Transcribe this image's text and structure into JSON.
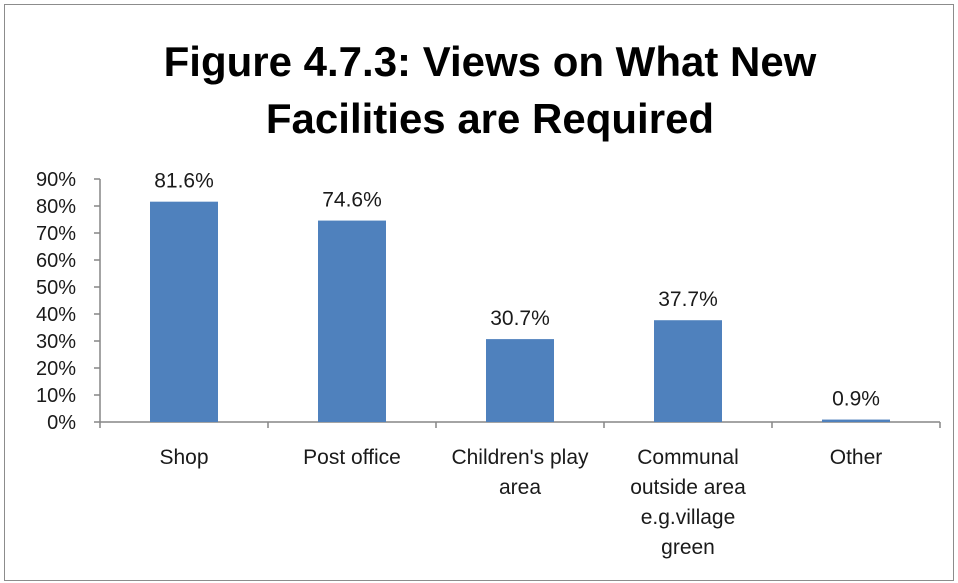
{
  "chart_data": {
    "type": "bar",
    "title_lines": [
      "Figure 4.7.3: Views on What New",
      "Facilities are Required"
    ],
    "categories": [
      [
        "Shop"
      ],
      [
        "Post office"
      ],
      [
        "Children's play",
        "area"
      ],
      [
        "Communal",
        "outside area",
        "e.g.village",
        "green"
      ],
      [
        "Other"
      ]
    ],
    "values": [
      81.6,
      74.6,
      30.7,
      37.7,
      0.9
    ],
    "data_labels": [
      "81.6%",
      "74.6%",
      "30.7%",
      "37.7%",
      "0.9%"
    ],
    "ylim": [
      0,
      90
    ],
    "yticks": [
      0,
      10,
      20,
      30,
      40,
      50,
      60,
      70,
      80,
      90
    ],
    "ytick_labels": [
      "0%",
      "10%",
      "20%",
      "30%",
      "40%",
      "50%",
      "60%",
      "70%",
      "80%",
      "90%"
    ],
    "bar_color": "#4f81bd",
    "grid": false,
    "legend": "none"
  }
}
